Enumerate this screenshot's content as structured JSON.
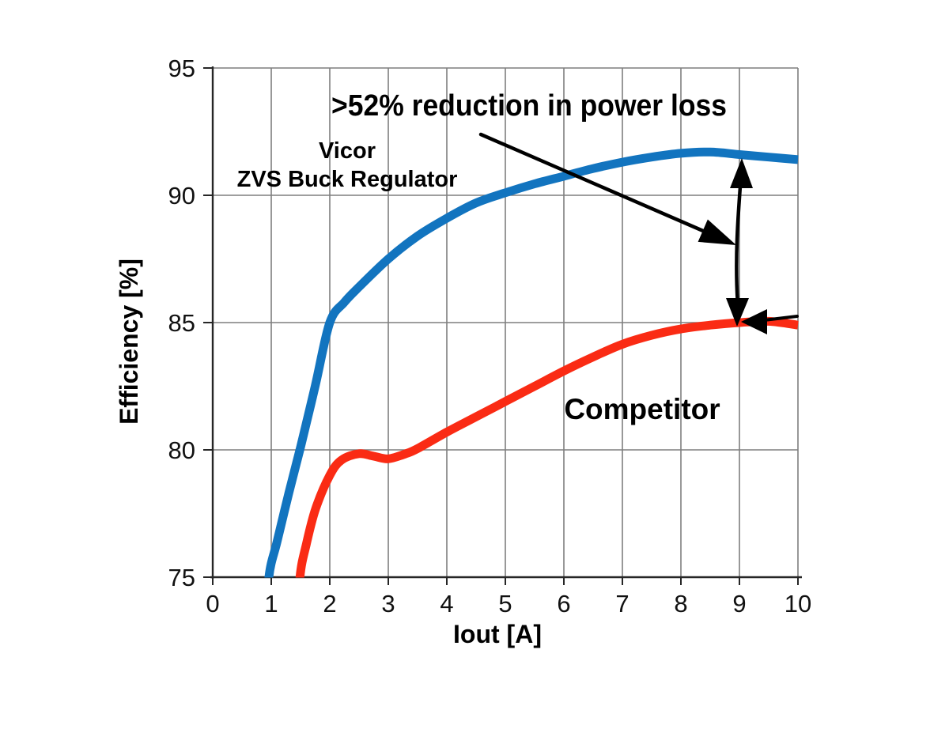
{
  "page": {
    "background": "#ffffff"
  },
  "annotation": {
    "power_loss_text": ">52% reduction in power loss"
  },
  "labels": {
    "vicor_line1": "Vicor",
    "vicor_line2": "ZVS Buck Regulator",
    "competitor": "Competitor"
  },
  "axes": {
    "x_label": "Iout [A]",
    "y_label": "Efficiency [%]"
  },
  "chart_data": {
    "type": "line",
    "title": "",
    "xlabel": "Iout [A]",
    "ylabel": "Efficiency [%]",
    "xlim": [
      0,
      10
    ],
    "ylim": [
      75,
      95
    ],
    "x_ticks": [
      "0",
      "1",
      "2",
      "3",
      "4",
      "5",
      "6",
      "7",
      "8",
      "9",
      "10"
    ],
    "y_ticks": [
      "75",
      "80",
      "85",
      "90",
      "95"
    ],
    "grid": true,
    "grid_color": "#7f7f7f",
    "axis_color": "#262626",
    "annotation": ">52% reduction in power loss — double arrow between curves at Iout = 9 A (Vicor ~91.6%, Competitor ~85.0%)",
    "series": [
      {
        "id": "vicor",
        "name": "Vicor ZVS Buck Regulator",
        "color": "#1274BF",
        "points": [
          [
            0.9,
            72.5
          ],
          [
            0.96,
            75.0
          ],
          [
            1.1,
            76.4
          ],
          [
            1.3,
            78.3
          ],
          [
            1.5,
            80.1
          ],
          [
            1.75,
            82.5
          ],
          [
            2.0,
            85.0
          ],
          [
            2.25,
            85.8
          ],
          [
            2.5,
            86.4
          ],
          [
            3.0,
            87.5
          ],
          [
            3.5,
            88.4
          ],
          [
            4.0,
            89.1
          ],
          [
            4.5,
            89.7
          ],
          [
            5.0,
            90.1
          ],
          [
            5.5,
            90.45
          ],
          [
            6.0,
            90.75
          ],
          [
            6.5,
            91.05
          ],
          [
            7.0,
            91.3
          ],
          [
            7.5,
            91.5
          ],
          [
            8.0,
            91.65
          ],
          [
            8.5,
            91.7
          ],
          [
            9.0,
            91.6
          ],
          [
            9.5,
            91.5
          ],
          [
            10.0,
            91.4
          ]
        ]
      },
      {
        "id": "competitor",
        "name": "Competitor",
        "color": "#FA2B14",
        "points": [
          [
            1.43,
            72.5
          ],
          [
            1.49,
            75.0
          ],
          [
            1.6,
            76.3
          ],
          [
            1.76,
            77.7
          ],
          [
            2.0,
            79.0
          ],
          [
            2.2,
            79.6
          ],
          [
            2.5,
            79.85
          ],
          [
            2.75,
            79.75
          ],
          [
            3.0,
            79.65
          ],
          [
            3.3,
            79.85
          ],
          [
            3.5,
            80.05
          ],
          [
            4.0,
            80.7
          ],
          [
            4.5,
            81.3
          ],
          [
            5.0,
            81.9
          ],
          [
            5.5,
            82.5
          ],
          [
            6.0,
            83.1
          ],
          [
            6.5,
            83.65
          ],
          [
            7.0,
            84.15
          ],
          [
            7.5,
            84.5
          ],
          [
            8.0,
            84.75
          ],
          [
            8.5,
            84.9
          ],
          [
            9.0,
            85.0
          ],
          [
            9.5,
            85.05
          ],
          [
            10.0,
            84.9
          ]
        ]
      }
    ]
  }
}
